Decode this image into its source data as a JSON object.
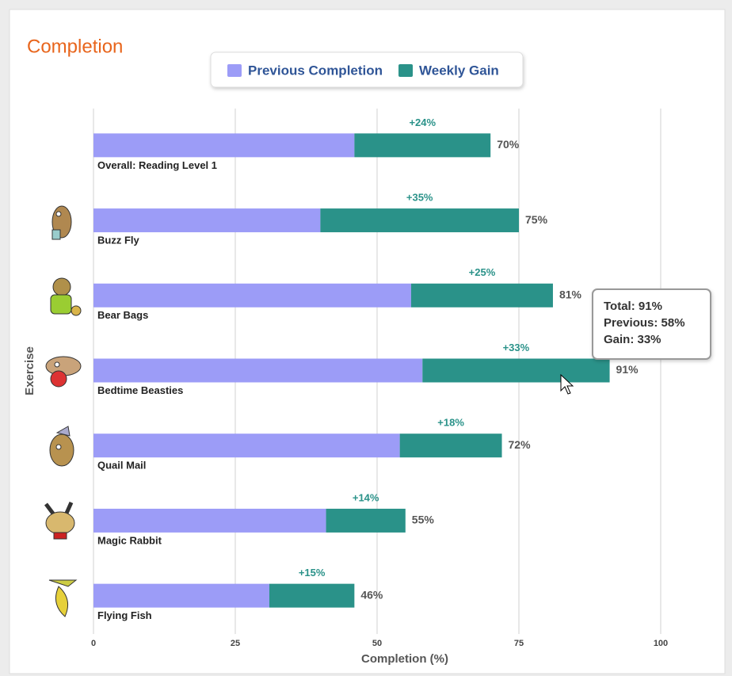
{
  "chart_data": {
    "type": "stacked-hbar",
    "title": "Completion",
    "x_label": "Completion (%)",
    "y_label": "Exercise",
    "categories": [
      "Overall: Reading Level 1",
      "Buzz Fly",
      "Bear Bags",
      "Bedtime Beasties",
      "Quail Mail",
      "Magic Rabbit",
      "Flying Fish"
    ],
    "series": [
      {
        "name": "Previous Completion",
        "color": "#9c9cf7",
        "values": [
          46,
          40,
          56,
          58,
          54,
          41,
          31
        ]
      },
      {
        "name": "Weekly Gain",
        "color": "#2a9289",
        "values": [
          24,
          35,
          25,
          33,
          18,
          14,
          15
        ],
        "value_labels": [
          "+24%",
          "+35%",
          "+25%",
          "+33%",
          "+18%",
          "+14%",
          "+15%"
        ]
      }
    ],
    "totals": [
      70,
      75,
      81,
      91,
      72,
      55,
      46
    ],
    "total_labels": [
      "70%",
      "75%",
      "81%",
      "91%",
      "72%",
      "55%",
      "46%"
    ],
    "xlim": [
      0,
      100
    ],
    "xticks": [
      0,
      25,
      50,
      75,
      100
    ],
    "grid": true,
    "legend": "top",
    "tooltip": [
      "Total: 91%",
      "Previous: 58%",
      "Gain: 33%"
    ]
  }
}
